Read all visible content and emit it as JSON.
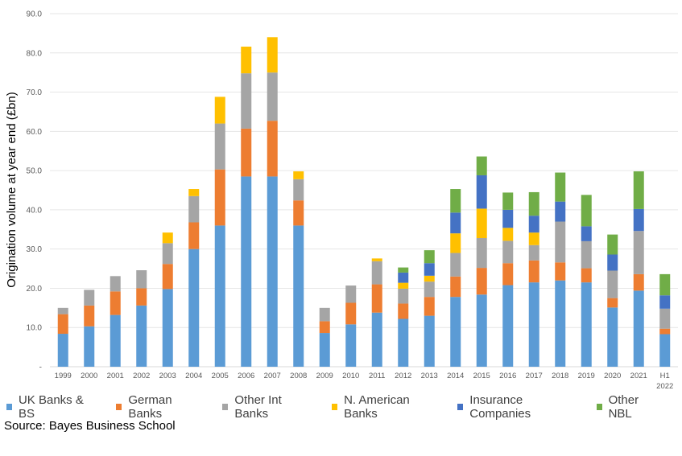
{
  "chart_data": {
    "type": "bar",
    "stacked": true,
    "title": "",
    "xlabel": "",
    "ylabel": "Origination volume at year end (£bn)",
    "ylim": [
      0,
      90
    ],
    "yticks": [
      "-",
      "10.0",
      "20.0",
      "30.0",
      "40.0",
      "50.0",
      "60.0",
      "70.0",
      "80.0",
      "90.0"
    ],
    "ytick_values": [
      0,
      10,
      20,
      30,
      40,
      50,
      60,
      70,
      80,
      90
    ],
    "grid": true,
    "legend_position": "bottom",
    "categories": [
      "1999",
      "2000",
      "2001",
      "2002",
      "2003",
      "2004",
      "2005",
      "2006",
      "2007",
      "2008",
      "2009",
      "2010",
      "2011",
      "2012",
      "2013",
      "2014",
      "2015",
      "2016",
      "2017",
      "2018",
      "2019",
      "2020",
      "2021",
      "H1 2022"
    ],
    "series": [
      {
        "name": "UK Banks & BS",
        "color": "#5B9BD5",
        "values": [
          8.4,
          10.3,
          13.2,
          15.6,
          19.8,
          30.0,
          36.0,
          48.5,
          48.5,
          36.0,
          8.6,
          10.8,
          13.8,
          12.2,
          13.0,
          17.8,
          18.4,
          20.8,
          21.5,
          22.0,
          21.5,
          15.1,
          19.4,
          8.3
        ]
      },
      {
        "name": "German Banks",
        "color": "#ED7D31",
        "values": [
          5.0,
          5.3,
          6.0,
          4.4,
          6.4,
          6.8,
          14.3,
          12.2,
          14.2,
          6.4,
          3.0,
          5.5,
          7.2,
          3.9,
          4.8,
          5.2,
          6.8,
          5.6,
          5.6,
          4.6,
          3.6,
          2.4,
          4.2,
          1.4
        ]
      },
      {
        "name": "Other Int Banks",
        "color": "#A5A5A5",
        "values": [
          1.6,
          4.0,
          3.9,
          4.6,
          5.3,
          6.7,
          11.7,
          14.1,
          12.3,
          5.4,
          3.4,
          4.4,
          5.9,
          3.8,
          3.9,
          6.0,
          7.6,
          5.7,
          3.9,
          10.4,
          6.9,
          7.0,
          11.0,
          5.1
        ]
      },
      {
        "name": "N. American Banks",
        "color": "#FFC000",
        "values": [
          0,
          0,
          0,
          0,
          2.7,
          1.8,
          6.8,
          6.8,
          9.0,
          2.0,
          0,
          0,
          0.7,
          1.5,
          1.5,
          5.0,
          7.5,
          3.3,
          3.2,
          0,
          0,
          0,
          0,
          0
        ]
      },
      {
        "name": "Insurance Companies",
        "color": "#4472C4",
        "values": [
          0,
          0,
          0,
          0,
          0,
          0,
          0,
          0,
          0,
          0,
          0,
          0,
          0,
          2.6,
          3.2,
          5.3,
          8.5,
          4.6,
          4.3,
          5.1,
          3.8,
          4.1,
          5.6,
          3.4
        ]
      },
      {
        "name": "Other NBL",
        "color": "#70AD47",
        "values": [
          0,
          0,
          0,
          0,
          0,
          0,
          0,
          0,
          0,
          0,
          0,
          0,
          0,
          1.3,
          3.3,
          6.0,
          4.8,
          4.4,
          6.0,
          7.4,
          8.0,
          5.1,
          9.6,
          5.4
        ]
      }
    ]
  },
  "source": "Source: Bayes Business School"
}
